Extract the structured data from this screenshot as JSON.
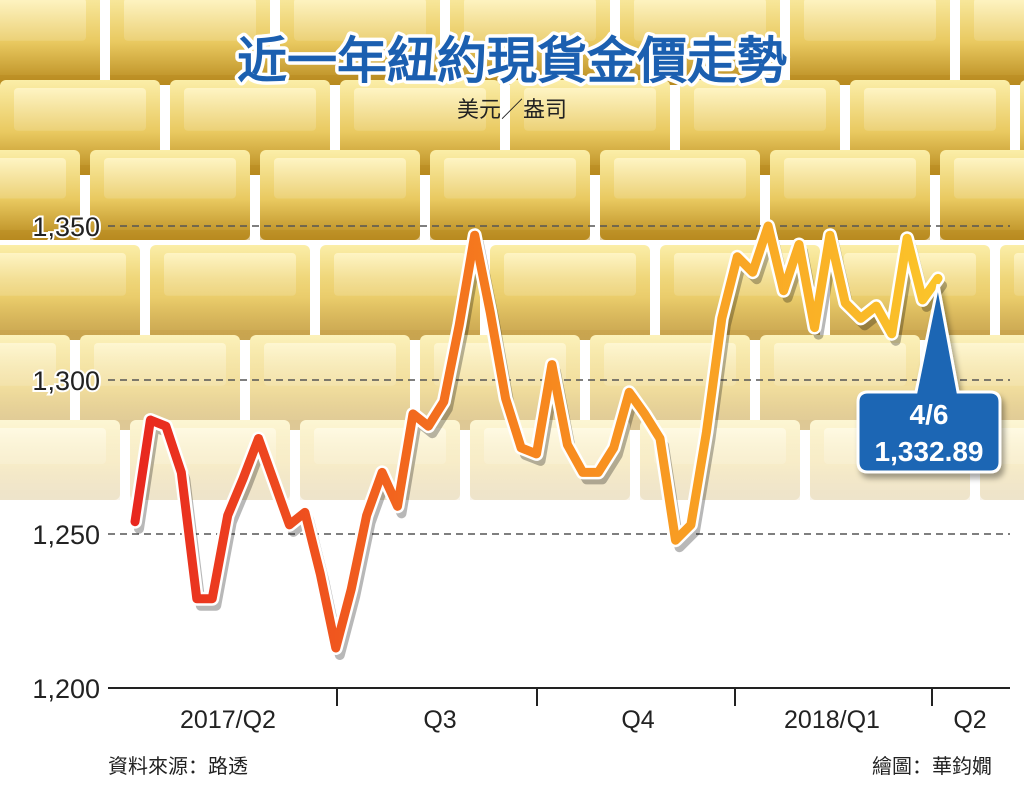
{
  "chart_data": {
    "type": "line",
    "title": "近一年紐約現貨金價走勢",
    "unit": "美元／盎司",
    "ylim": [
      1200,
      1360
    ],
    "yticks": [
      1200,
      1250,
      1300,
      1350
    ],
    "ytick_labels": [
      "1,200",
      "1,250",
      "1,300",
      "1,350"
    ],
    "grid": "horizontal-dashed",
    "x_period_labels": [
      "2017/Q2",
      "Q3",
      "Q4",
      "2018/Q1",
      "Q2"
    ],
    "series": [
      {
        "values": [
          1254,
          1287,
          1285,
          1270,
          1229,
          1229,
          1256,
          1268,
          1281,
          1267,
          1253,
          1257,
          1237,
          1213,
          1232,
          1256,
          1270,
          1259,
          1289,
          1285,
          1293,
          1318,
          1347,
          1322,
          1294,
          1278,
          1276,
          1305,
          1279,
          1270,
          1270,
          1278,
          1296,
          1289,
          1281,
          1248,
          1253,
          1283,
          1320,
          1340,
          1335,
          1350,
          1329,
          1344,
          1317,
          1347,
          1325,
          1320,
          1324,
          1315,
          1346,
          1326,
          1333
        ]
      }
    ],
    "annotation": {
      "date": "4/6",
      "value": "1,332.89"
    }
  },
  "source_label": "資料來源：路透",
  "credit_label": "繪圖：華鈞嫺",
  "colors": {
    "title": "#1b5fb0",
    "callout": "#1a66b4",
    "line_start": "#e8261f",
    "line_mid": "#f7861e",
    "line_end": "#fbc52a",
    "bars_light": "#f6e08c",
    "bars_dark": "#b88a1f"
  }
}
